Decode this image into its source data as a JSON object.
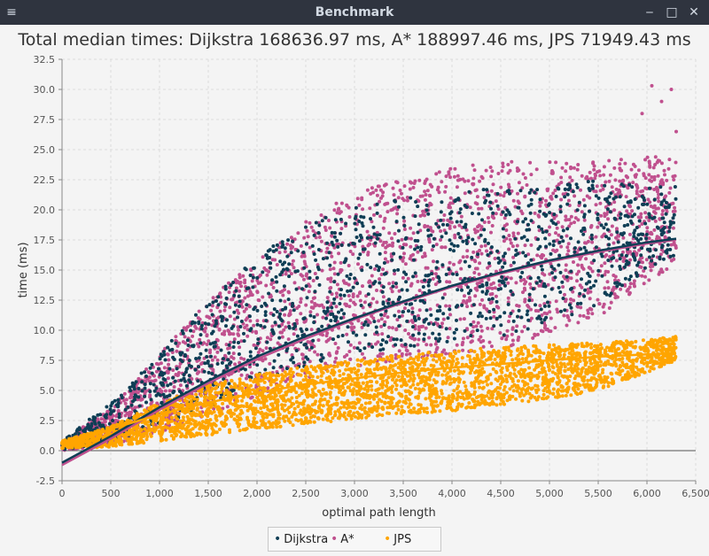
{
  "window": {
    "title": "Benchmark",
    "menu_icon": "hamburger-menu-icon",
    "minimize_icon": "minimize-icon",
    "maximize_icon": "maximize-icon",
    "close_icon": "close-icon"
  },
  "chart_data": {
    "type": "scatter",
    "title": "Total median times: Dijkstra 168636.97 ms, A* 188997.46 ms, JPS 71949.43 ms",
    "xlabel": "optimal path length",
    "ylabel": "time (ms)",
    "xlim": [
      0,
      6500
    ],
    "ylim": [
      -2.5,
      32.5
    ],
    "x_ticks": [
      "0",
      "500",
      "1,000",
      "1,500",
      "2,000",
      "2,500",
      "3,000",
      "3,500",
      "4,000",
      "4,500",
      "5,000",
      "5,500",
      "6,000",
      "6,500"
    ],
    "y_ticks": [
      "-2.5",
      "0.0",
      "2.5",
      "5.0",
      "7.5",
      "10.0",
      "12.5",
      "15.0",
      "17.5",
      "20.0",
      "22.5",
      "25.0",
      "27.5",
      "30.0",
      "32.5"
    ],
    "grid": true,
    "legend_position": "bottom-center",
    "series": [
      {
        "name": "Dijkstra",
        "color": "#0e3e55",
        "envelope_x": [
          0,
          500,
          1000,
          1500,
          2000,
          2500,
          3000,
          3500,
          4000,
          4500,
          5000,
          5500,
          6000,
          6300
        ],
        "envelope_low": [
          0.0,
          0.8,
          2.0,
          3.5,
          5.5,
          7.0,
          8.0,
          8.5,
          9.0,
          9.5,
          10.5,
          12.0,
          15.0,
          16.0
        ],
        "envelope_high": [
          0.8,
          4.0,
          8.0,
          12.5,
          16.0,
          19.0,
          20.5,
          21.0,
          21.5,
          22.0,
          22.0,
          22.5,
          22.0,
          22.0
        ],
        "trend_x": [
          0,
          500,
          1000,
          1500,
          2000,
          2500,
          3000,
          3500,
          4000,
          4500,
          5000,
          5500,
          6000,
          6300
        ],
        "trend_y": [
          -1.0,
          1.2,
          3.6,
          5.8,
          7.8,
          9.5,
          11.0,
          12.4,
          13.7,
          14.8,
          15.8,
          16.6,
          17.3,
          17.6
        ]
      },
      {
        "name": "A*",
        "color": "#c0508e",
        "envelope_x": [
          0,
          500,
          1000,
          1500,
          2000,
          2500,
          3000,
          3500,
          4000,
          4500,
          5000,
          5500,
          6000,
          6300
        ],
        "envelope_low": [
          0.0,
          0.5,
          1.5,
          3.0,
          4.5,
          6.0,
          7.0,
          7.5,
          8.0,
          8.5,
          9.5,
          11.0,
          14.0,
          15.5
        ],
        "envelope_high": [
          0.8,
          3.5,
          8.0,
          12.5,
          16.0,
          19.0,
          21.5,
          22.5,
          23.5,
          24.0,
          24.0,
          24.0,
          24.5,
          24.5
        ],
        "outlier_x": [
          5950,
          6050,
          6150,
          6250,
          6300
        ],
        "outlier_y": [
          28.0,
          30.3,
          29.0,
          30.0,
          26.5
        ],
        "trend_x": [
          0,
          500,
          1000,
          1500,
          2000,
          2500,
          3000,
          3500,
          4000,
          4500,
          5000,
          5500,
          6000,
          6300
        ],
        "trend_y": [
          -1.2,
          1.0,
          3.4,
          5.6,
          7.6,
          9.3,
          10.9,
          12.3,
          13.6,
          14.7,
          15.7,
          16.5,
          17.2,
          17.5
        ]
      },
      {
        "name": "JPS",
        "color": "#ffa500",
        "envelope_x": [
          0,
          500,
          1000,
          1500,
          2000,
          2500,
          3000,
          3500,
          4000,
          4500,
          5000,
          5500,
          6000,
          6300
        ],
        "envelope_low": [
          0.2,
          0.3,
          0.8,
          1.3,
          1.8,
          2.2,
          2.6,
          3.0,
          3.3,
          3.8,
          4.3,
          5.0,
          6.5,
          7.5
        ],
        "envelope_high": [
          0.8,
          2.0,
          4.0,
          5.5,
          6.3,
          7.0,
          7.5,
          8.0,
          8.3,
          8.6,
          8.8,
          9.0,
          9.2,
          9.5
        ],
        "trend_x": [
          0,
          500,
          1000,
          1500,
          2000,
          2500,
          3000,
          3500,
          4000,
          4500,
          5000,
          5500,
          6000,
          6300
        ],
        "trend_y": [
          0.3,
          1.8,
          3.0,
          4.0,
          4.8,
          5.5,
          6.0,
          6.5,
          6.9,
          7.2,
          7.5,
          7.8,
          8.0,
          8.1
        ]
      }
    ]
  }
}
